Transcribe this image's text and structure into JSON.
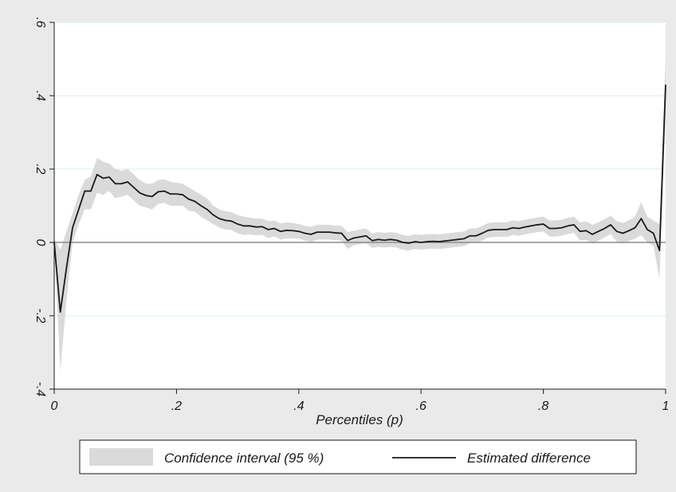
{
  "colors": {
    "outer_background": "#eaeaea",
    "plot_background": "#ffffff",
    "gridline": "#d8ecea",
    "band_fill": "#dadada",
    "line": "#1a1a1a",
    "zero_line": "#8c8c8c"
  },
  "chart_data": {
    "type": "line",
    "title": "",
    "xlabel": "Percentiles (p)",
    "ylabel": "",
    "xlim": [
      0,
      1
    ],
    "ylim": [
      -0.4,
      0.6
    ],
    "x_ticks": [
      0,
      0.2,
      0.4,
      0.6,
      0.8,
      1
    ],
    "x_tick_labels": [
      "0",
      ".2",
      ".4",
      ".6",
      ".8",
      "1"
    ],
    "y_ticks": [
      -0.4,
      -0.2,
      0,
      0.2,
      0.4,
      0.6
    ],
    "y_tick_labels": [
      "-.4",
      "-.2",
      "0",
      ".2",
      ".4",
      ".6"
    ],
    "grid": "horizontal",
    "reference_line_y": 0,
    "legend_position": "bottom",
    "legend": [
      "Confidence interval (95 %)",
      "Estimated difference"
    ],
    "series": [
      {
        "name": "Estimated difference",
        "kind": "line",
        "points": [
          [
            0.0,
            0.0
          ],
          [
            0.01,
            -0.19
          ],
          [
            0.02,
            -0.07
          ],
          [
            0.03,
            0.04
          ],
          [
            0.04,
            0.09
          ],
          [
            0.05,
            0.14
          ],
          [
            0.06,
            0.14
          ],
          [
            0.07,
            0.185
          ],
          [
            0.08,
            0.175
          ],
          [
            0.09,
            0.178
          ],
          [
            0.1,
            0.16
          ],
          [
            0.11,
            0.16
          ],
          [
            0.12,
            0.165
          ],
          [
            0.13,
            0.15
          ],
          [
            0.14,
            0.135
          ],
          [
            0.15,
            0.128
          ],
          [
            0.16,
            0.125
          ],
          [
            0.17,
            0.138
          ],
          [
            0.18,
            0.14
          ],
          [
            0.19,
            0.132
          ],
          [
            0.2,
            0.132
          ],
          [
            0.21,
            0.13
          ],
          [
            0.22,
            0.118
          ],
          [
            0.23,
            0.112
          ],
          [
            0.24,
            0.1
          ],
          [
            0.25,
            0.09
          ],
          [
            0.26,
            0.075
          ],
          [
            0.27,
            0.065
          ],
          [
            0.28,
            0.06
          ],
          [
            0.29,
            0.058
          ],
          [
            0.3,
            0.05
          ],
          [
            0.31,
            0.045
          ],
          [
            0.32,
            0.045
          ],
          [
            0.33,
            0.042
          ],
          [
            0.34,
            0.043
          ],
          [
            0.35,
            0.035
          ],
          [
            0.36,
            0.038
          ],
          [
            0.37,
            0.03
          ],
          [
            0.38,
            0.033
          ],
          [
            0.39,
            0.032
          ],
          [
            0.4,
            0.03
          ],
          [
            0.41,
            0.025
          ],
          [
            0.42,
            0.022
          ],
          [
            0.43,
            0.028
          ],
          [
            0.44,
            0.028
          ],
          [
            0.45,
            0.028
          ],
          [
            0.46,
            0.026
          ],
          [
            0.47,
            0.025
          ],
          [
            0.48,
            0.005
          ],
          [
            0.49,
            0.012
          ],
          [
            0.5,
            0.015
          ],
          [
            0.51,
            0.018
          ],
          [
            0.52,
            0.005
          ],
          [
            0.53,
            0.008
          ],
          [
            0.54,
            0.006
          ],
          [
            0.55,
            0.008
          ],
          [
            0.56,
            0.006
          ],
          [
            0.57,
            0.0
          ],
          [
            0.58,
            -0.002
          ],
          [
            0.59,
            0.002
          ],
          [
            0.6,
            0.0
          ],
          [
            0.61,
            0.002
          ],
          [
            0.62,
            0.003
          ],
          [
            0.63,
            0.002
          ],
          [
            0.64,
            0.004
          ],
          [
            0.65,
            0.006
          ],
          [
            0.66,
            0.008
          ],
          [
            0.67,
            0.01
          ],
          [
            0.68,
            0.018
          ],
          [
            0.69,
            0.018
          ],
          [
            0.7,
            0.025
          ],
          [
            0.71,
            0.033
          ],
          [
            0.72,
            0.035
          ],
          [
            0.73,
            0.035
          ],
          [
            0.74,
            0.035
          ],
          [
            0.75,
            0.04
          ],
          [
            0.76,
            0.038
          ],
          [
            0.77,
            0.042
          ],
          [
            0.78,
            0.045
          ],
          [
            0.79,
            0.048
          ],
          [
            0.8,
            0.05
          ],
          [
            0.81,
            0.038
          ],
          [
            0.82,
            0.038
          ],
          [
            0.83,
            0.04
          ],
          [
            0.84,
            0.045
          ],
          [
            0.85,
            0.048
          ],
          [
            0.86,
            0.03
          ],
          [
            0.87,
            0.032
          ],
          [
            0.88,
            0.022
          ],
          [
            0.89,
            0.03
          ],
          [
            0.9,
            0.038
          ],
          [
            0.91,
            0.048
          ],
          [
            0.92,
            0.03
          ],
          [
            0.93,
            0.025
          ],
          [
            0.94,
            0.032
          ],
          [
            0.95,
            0.04
          ],
          [
            0.96,
            0.065
          ],
          [
            0.97,
            0.035
          ],
          [
            0.98,
            0.025
          ],
          [
            0.99,
            -0.022
          ],
          [
            1.0,
            0.43
          ]
        ]
      },
      {
        "name": "Confidence interval (95 %)",
        "kind": "band",
        "upper": [
          [
            0.0,
            0.01
          ],
          [
            0.01,
            -0.02
          ],
          [
            0.02,
            0.03
          ],
          [
            0.03,
            0.08
          ],
          [
            0.04,
            0.13
          ],
          [
            0.05,
            0.17
          ],
          [
            0.06,
            0.18
          ],
          [
            0.07,
            0.23
          ],
          [
            0.08,
            0.22
          ],
          [
            0.09,
            0.215
          ],
          [
            0.1,
            0.2
          ],
          [
            0.11,
            0.195
          ],
          [
            0.12,
            0.2
          ],
          [
            0.13,
            0.185
          ],
          [
            0.14,
            0.17
          ],
          [
            0.15,
            0.16
          ],
          [
            0.16,
            0.16
          ],
          [
            0.17,
            0.17
          ],
          [
            0.18,
            0.172
          ],
          [
            0.19,
            0.165
          ],
          [
            0.2,
            0.163
          ],
          [
            0.21,
            0.16
          ],
          [
            0.22,
            0.15
          ],
          [
            0.23,
            0.14
          ],
          [
            0.24,
            0.13
          ],
          [
            0.25,
            0.12
          ],
          [
            0.26,
            0.1
          ],
          [
            0.27,
            0.09
          ],
          [
            0.28,
            0.085
          ],
          [
            0.29,
            0.082
          ],
          [
            0.3,
            0.075
          ],
          [
            0.31,
            0.07
          ],
          [
            0.32,
            0.068
          ],
          [
            0.33,
            0.065
          ],
          [
            0.34,
            0.065
          ],
          [
            0.35,
            0.058
          ],
          [
            0.36,
            0.06
          ],
          [
            0.37,
            0.052
          ],
          [
            0.38,
            0.055
          ],
          [
            0.39,
            0.053
          ],
          [
            0.4,
            0.05
          ],
          [
            0.41,
            0.045
          ],
          [
            0.42,
            0.043
          ],
          [
            0.43,
            0.048
          ],
          [
            0.44,
            0.048
          ],
          [
            0.45,
            0.048
          ],
          [
            0.46,
            0.046
          ],
          [
            0.47,
            0.045
          ],
          [
            0.48,
            0.028
          ],
          [
            0.49,
            0.032
          ],
          [
            0.5,
            0.035
          ],
          [
            0.51,
            0.038
          ],
          [
            0.52,
            0.025
          ],
          [
            0.53,
            0.028
          ],
          [
            0.54,
            0.026
          ],
          [
            0.55,
            0.028
          ],
          [
            0.56,
            0.026
          ],
          [
            0.57,
            0.02
          ],
          [
            0.58,
            0.018
          ],
          [
            0.59,
            0.022
          ],
          [
            0.6,
            0.02
          ],
          [
            0.61,
            0.022
          ],
          [
            0.62,
            0.023
          ],
          [
            0.63,
            0.022
          ],
          [
            0.64,
            0.024
          ],
          [
            0.65,
            0.026
          ],
          [
            0.66,
            0.028
          ],
          [
            0.67,
            0.03
          ],
          [
            0.68,
            0.038
          ],
          [
            0.69,
            0.038
          ],
          [
            0.7,
            0.045
          ],
          [
            0.71,
            0.053
          ],
          [
            0.72,
            0.055
          ],
          [
            0.73,
            0.055
          ],
          [
            0.74,
            0.055
          ],
          [
            0.75,
            0.06
          ],
          [
            0.76,
            0.058
          ],
          [
            0.77,
            0.062
          ],
          [
            0.78,
            0.065
          ],
          [
            0.79,
            0.068
          ],
          [
            0.8,
            0.07
          ],
          [
            0.81,
            0.06
          ],
          [
            0.82,
            0.06
          ],
          [
            0.83,
            0.062
          ],
          [
            0.84,
            0.067
          ],
          [
            0.85,
            0.07
          ],
          [
            0.86,
            0.055
          ],
          [
            0.87,
            0.057
          ],
          [
            0.88,
            0.048
          ],
          [
            0.89,
            0.055
          ],
          [
            0.9,
            0.063
          ],
          [
            0.91,
            0.073
          ],
          [
            0.92,
            0.058
          ],
          [
            0.93,
            0.053
          ],
          [
            0.94,
            0.06
          ],
          [
            0.95,
            0.07
          ],
          [
            0.96,
            0.11
          ],
          [
            0.97,
            0.07
          ],
          [
            0.98,
            0.06
          ],
          [
            0.99,
            0.05
          ],
          [
            1.0,
            0.51
          ]
        ],
        "lower": [
          [
            0.0,
            -0.01
          ],
          [
            0.01,
            -0.35
          ],
          [
            0.02,
            -0.16
          ],
          [
            0.03,
            0.0
          ],
          [
            0.04,
            0.05
          ],
          [
            0.05,
            0.09
          ],
          [
            0.06,
            0.09
          ],
          [
            0.07,
            0.135
          ],
          [
            0.08,
            0.13
          ],
          [
            0.09,
            0.14
          ],
          [
            0.1,
            0.12
          ],
          [
            0.11,
            0.125
          ],
          [
            0.12,
            0.13
          ],
          [
            0.13,
            0.115
          ],
          [
            0.14,
            0.1
          ],
          [
            0.15,
            0.095
          ],
          [
            0.16,
            0.09
          ],
          [
            0.17,
            0.105
          ],
          [
            0.18,
            0.108
          ],
          [
            0.19,
            0.1
          ],
          [
            0.2,
            0.1
          ],
          [
            0.21,
            0.1
          ],
          [
            0.22,
            0.086
          ],
          [
            0.23,
            0.084
          ],
          [
            0.24,
            0.07
          ],
          [
            0.25,
            0.06
          ],
          [
            0.26,
            0.05
          ],
          [
            0.27,
            0.04
          ],
          [
            0.28,
            0.035
          ],
          [
            0.29,
            0.034
          ],
          [
            0.3,
            0.025
          ],
          [
            0.31,
            0.02
          ],
          [
            0.32,
            0.022
          ],
          [
            0.33,
            0.019
          ],
          [
            0.34,
            0.021
          ],
          [
            0.35,
            0.012
          ],
          [
            0.36,
            0.016
          ],
          [
            0.37,
            0.008
          ],
          [
            0.38,
            0.011
          ],
          [
            0.39,
            0.011
          ],
          [
            0.4,
            0.01
          ],
          [
            0.41,
            0.005
          ],
          [
            0.42,
            0.001
          ],
          [
            0.43,
            0.008
          ],
          [
            0.44,
            0.008
          ],
          [
            0.45,
            0.008
          ],
          [
            0.46,
            0.006
          ],
          [
            0.47,
            0.005
          ],
          [
            0.48,
            -0.018
          ],
          [
            0.49,
            -0.008
          ],
          [
            0.5,
            -0.005
          ],
          [
            0.51,
            -0.002
          ],
          [
            0.52,
            -0.015
          ],
          [
            0.53,
            -0.012
          ],
          [
            0.54,
            -0.014
          ],
          [
            0.55,
            -0.012
          ],
          [
            0.56,
            -0.014
          ],
          [
            0.57,
            -0.02
          ],
          [
            0.58,
            -0.022
          ],
          [
            0.59,
            -0.018
          ],
          [
            0.6,
            -0.02
          ],
          [
            0.61,
            -0.018
          ],
          [
            0.62,
            -0.017
          ],
          [
            0.63,
            -0.018
          ],
          [
            0.64,
            -0.016
          ],
          [
            0.65,
            -0.014
          ],
          [
            0.66,
            -0.012
          ],
          [
            0.67,
            -0.01
          ],
          [
            0.68,
            -0.002
          ],
          [
            0.69,
            -0.002
          ],
          [
            0.7,
            0.005
          ],
          [
            0.71,
            0.013
          ],
          [
            0.72,
            0.015
          ],
          [
            0.73,
            0.015
          ],
          [
            0.74,
            0.015
          ],
          [
            0.75,
            0.02
          ],
          [
            0.76,
            0.018
          ],
          [
            0.77,
            0.022
          ],
          [
            0.78,
            0.025
          ],
          [
            0.79,
            0.028
          ],
          [
            0.8,
            0.03
          ],
          [
            0.81,
            0.016
          ],
          [
            0.82,
            0.016
          ],
          [
            0.83,
            0.018
          ],
          [
            0.84,
            0.023
          ],
          [
            0.85,
            0.026
          ],
          [
            0.86,
            0.005
          ],
          [
            0.87,
            0.007
          ],
          [
            0.88,
            -0.004
          ],
          [
            0.89,
            0.005
          ],
          [
            0.9,
            0.013
          ],
          [
            0.91,
            0.023
          ],
          [
            0.92,
            0.002
          ],
          [
            0.93,
            -0.003
          ],
          [
            0.94,
            0.004
          ],
          [
            0.95,
            0.01
          ],
          [
            0.96,
            0.02
          ],
          [
            0.97,
            0.0
          ],
          [
            0.98,
            -0.01
          ],
          [
            0.99,
            -0.1
          ],
          [
            1.0,
            0.35
          ]
        ]
      }
    ]
  }
}
